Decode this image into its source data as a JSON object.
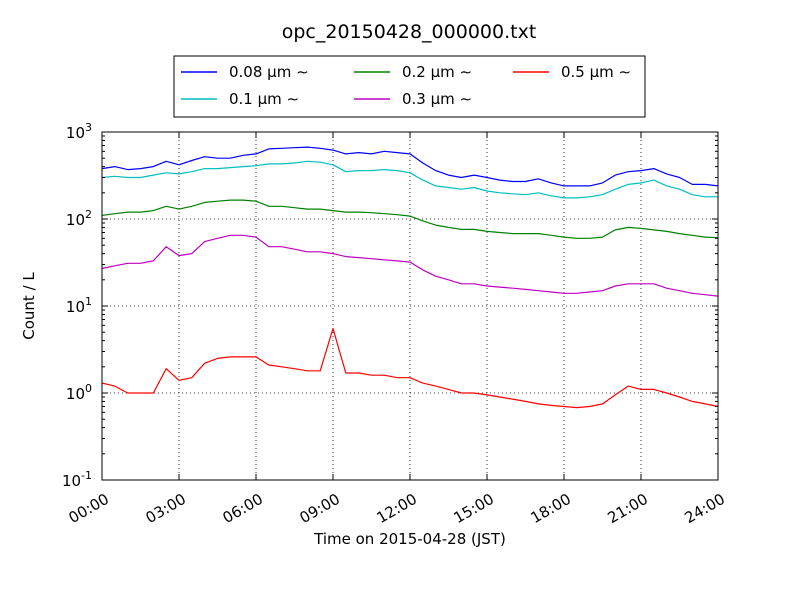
{
  "chart_data": {
    "type": "line",
    "title": "opc_20150428_000000.txt",
    "xlabel": "Time on 2015-04-28 (JST)",
    "ylabel": "Count / L",
    "x_unit": "hours (JST)",
    "xlim": [
      0,
      24
    ],
    "ylim": [
      0.1,
      1000
    ],
    "yscale": "log",
    "grid": true,
    "legend_placement": "top-center, above plot",
    "x_ticks": [
      "00:00",
      "03:00",
      "06:00",
      "09:00",
      "12:00",
      "15:00",
      "18:00",
      "21:00",
      "24:00"
    ],
    "y_ticks": [
      {
        "base": "10",
        "exp": "-1"
      },
      {
        "base": "10",
        "exp": "0"
      },
      {
        "base": "10",
        "exp": "1"
      },
      {
        "base": "10",
        "exp": "2"
      },
      {
        "base": "10",
        "exp": "3"
      }
    ],
    "x": [
      0,
      0.5,
      1,
      1.5,
      2,
      2.5,
      3,
      3.5,
      4,
      4.5,
      5,
      5.5,
      6,
      6.5,
      7,
      7.5,
      8,
      8.5,
      9,
      9.5,
      10,
      10.5,
      11,
      11.5,
      12,
      12.5,
      13,
      13.5,
      14,
      14.5,
      15,
      15.5,
      16,
      16.5,
      17,
      17.5,
      18,
      18.5,
      19,
      19.5,
      20,
      20.5,
      21,
      21.5,
      22,
      22.5,
      23,
      23.5,
      24
    ],
    "series": [
      {
        "name": "0.08 μm ∼",
        "color": "#0000ff",
        "values": [
          380,
          400,
          370,
          380,
          400,
          460,
          420,
          470,
          520,
          500,
          500,
          540,
          560,
          640,
          650,
          660,
          670,
          650,
          620,
          560,
          580,
          560,
          600,
          580,
          560,
          440,
          360,
          320,
          300,
          320,
          300,
          280,
          270,
          270,
          290,
          260,
          240,
          240,
          240,
          260,
          320,
          350,
          360,
          380,
          330,
          300,
          250,
          250,
          240
        ]
      },
      {
        "name": "0.1 μm ∼",
        "color": "#00bfbf",
        "values": [
          300,
          310,
          300,
          300,
          320,
          340,
          330,
          350,
          380,
          380,
          390,
          400,
          410,
          430,
          430,
          440,
          460,
          450,
          420,
          350,
          360,
          360,
          370,
          360,
          340,
          280,
          240,
          230,
          220,
          230,
          210,
          200,
          195,
          190,
          200,
          185,
          175,
          175,
          180,
          190,
          220,
          250,
          260,
          280,
          240,
          220,
          190,
          180,
          180
        ]
      },
      {
        "name": "0.2 μm ∼",
        "color": "#008000",
        "values": [
          110,
          115,
          120,
          120,
          125,
          140,
          130,
          140,
          155,
          160,
          165,
          165,
          160,
          140,
          140,
          135,
          130,
          130,
          125,
          120,
          120,
          118,
          115,
          112,
          108,
          95,
          85,
          80,
          76,
          76,
          72,
          70,
          68,
          68,
          68,
          65,
          62,
          60,
          60,
          62,
          75,
          80,
          78,
          75,
          72,
          68,
          65,
          62,
          61
        ]
      },
      {
        "name": "0.3 μm ∼",
        "color": "#bf00bf",
        "values": [
          27,
          29,
          31,
          31,
          33,
          48,
          38,
          40,
          55,
          60,
          65,
          65,
          62,
          48,
          48,
          45,
          42,
          42,
          40,
          37,
          36,
          35,
          34,
          33,
          32,
          26,
          22,
          20,
          18,
          18,
          17,
          16.5,
          16,
          15.5,
          15,
          14.5,
          14,
          14,
          14.5,
          15,
          17,
          18,
          18,
          18,
          16,
          15,
          14,
          13.5,
          13
        ]
      },
      {
        "name": "0.5 μm ∼",
        "color": "#ff0000",
        "values": [
          1.3,
          1.2,
          1.0,
          1.0,
          1.0,
          1.9,
          1.4,
          1.5,
          2.2,
          2.5,
          2.6,
          2.6,
          2.6,
          2.1,
          2.0,
          1.9,
          1.8,
          1.8,
          5.5,
          1.7,
          1.7,
          1.6,
          1.6,
          1.5,
          1.5,
          1.3,
          1.2,
          1.1,
          1.0,
          1.0,
          0.95,
          0.9,
          0.85,
          0.8,
          0.75,
          0.72,
          0.7,
          0.68,
          0.7,
          0.75,
          0.95,
          1.2,
          1.1,
          1.1,
          1.0,
          0.9,
          0.8,
          0.75,
          0.7
        ]
      }
    ]
  }
}
